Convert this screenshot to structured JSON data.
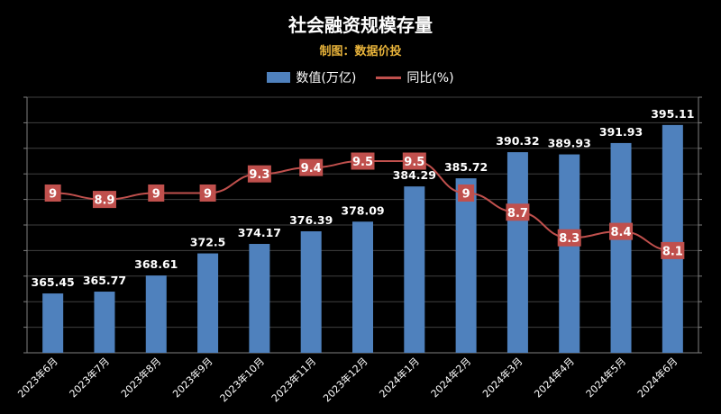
{
  "title": "社会融资规模存量",
  "subtitle": "制图：数据价投",
  "legend": {
    "bar_label": "数值(万亿)",
    "line_label": "同比(%)"
  },
  "colors": {
    "bar": "#4f81bd",
    "line": "#c0504d",
    "label_box": "#c0504d",
    "axis": "#7f7f7f",
    "grid": "#404040"
  },
  "chart_data": {
    "type": "bar",
    "title": "社会融资规模存量",
    "categories": [
      "2023年6月",
      "2023年7月",
      "2023年8月",
      "2023年9月",
      "2023年10月",
      "2023年11月",
      "2023年12月",
      "2024年1月",
      "2024年2月",
      "2024年3月",
      "2024年4月",
      "2024年5月",
      "2024年6月"
    ],
    "series": [
      {
        "name": "数值(万亿)",
        "type": "bar",
        "values": [
          365.45,
          365.77,
          368.61,
          372.5,
          374.17,
          376.39,
          378.09,
          384.29,
          385.72,
          390.32,
          389.93,
          391.93,
          395.11
        ]
      },
      {
        "name": "同比(%)",
        "type": "line",
        "values": [
          9,
          8.9,
          9,
          9,
          9.3,
          9.4,
          9.5,
          9.5,
          9,
          8.7,
          8.3,
          8.4,
          8.1
        ]
      }
    ],
    "ylim_bar": [
      355,
      400
    ],
    "ylim_line": [
      6.5,
      10.5
    ],
    "grid": true,
    "legend_position": "top"
  }
}
